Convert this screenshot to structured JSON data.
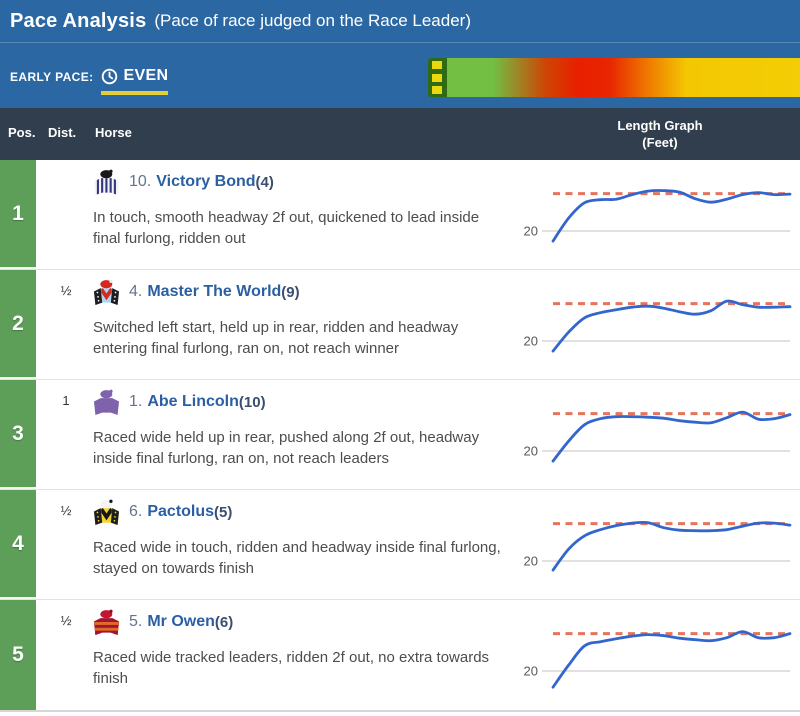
{
  "header": {
    "title": "Pace Analysis",
    "subtitle": "(Pace of race judged on the Race Leader)"
  },
  "early_pace": {
    "label": "EARLY PACE:",
    "value": "EVEN",
    "underline_color": "#e3ce39",
    "gradient_stops": [
      "#72bf44 0%",
      "#72bf44 13%",
      "#cf4504 28%",
      "#e81f00 37%",
      "#e82600 46%",
      "#ef7a00 57%",
      "#f3c802 68%",
      "#f3cd05 100%"
    ],
    "marker": {
      "frame": "#2f6b12",
      "square": "#ecd80e"
    }
  },
  "table": {
    "columns": {
      "pos": "Pos.",
      "dist": "Dist.",
      "horse": "Horse",
      "graph_line1": "Length Graph",
      "graph_line2": "(Feet)"
    }
  },
  "colors": {
    "header_blue": "#2b68a3",
    "table_header_dark": "#303e4d",
    "position_green": "#5d9e58",
    "horse_link_blue": "#2b5fa3"
  },
  "rows": [
    {
      "pos": "1",
      "dist": "",
      "num": "10.",
      "name": "Victory Bond",
      "draw": "(4)",
      "comment": "In touch, smooth headway 2f out, quickened to lead inside final furlong, ridden out",
      "silk": {
        "base": "#f4f4f8",
        "pattern": "stripes",
        "pattern_color": "#34387c",
        "sleeves": null,
        "sleeve_dot": null,
        "cap": "#17171c",
        "pom": "#17171c"
      }
    },
    {
      "pos": "2",
      "dist": "½",
      "num": "4.",
      "name": "Master The World",
      "draw": "(9)",
      "comment": "Switched left start, held up in rear, ridden and headway entering final furlong, ran on, not reach winner",
      "silk": {
        "base": "#aed6ee",
        "pattern": "chevron",
        "pattern_color": "#d32b20",
        "sleeves": "#1d1d22",
        "sleeve_dot": "#ffffff",
        "cap": "#d3291d",
        "pom": "#efe6e6"
      }
    },
    {
      "pos": "3",
      "dist": "1",
      "num": "1.",
      "name": "Abe Lincoln",
      "draw": "(10)",
      "comment": "Raced wide held up in rear, pushed along 2f out, headway inside final furlong, ran on, not reach leaders",
      "silk": {
        "base": "#7e62ab",
        "pattern": "plain",
        "pattern_color": null,
        "sleeves": null,
        "sleeve_dot": null,
        "cap": "#7e62ab",
        "pom": "#7e62ab"
      }
    },
    {
      "pos": "4",
      "dist": "½",
      "num": "6.",
      "name": "Pactolus",
      "draw": "(5)",
      "comment": "Raced wide in touch, ridden and headway inside final furlong, stayed on towards finish",
      "silk": {
        "base": "#f3d32b",
        "pattern": "chevron",
        "pattern_color": "#17171a",
        "sleeves": "#1d1d22",
        "sleeve_dot": "#f3d32b",
        "cap": "#f4f4f4",
        "pom": "#17171a"
      }
    },
    {
      "pos": "5",
      "dist": "½",
      "num": "5.",
      "name": "Mr Owen",
      "draw": "(6)",
      "comment": "Raced wide tracked leaders, ridden 2f out, no extra towards finish",
      "silk": {
        "base": "#a31430",
        "pattern": "hoops",
        "pattern_color": "#e06b28",
        "sleeves": "#a31430",
        "sleeve_dot": null,
        "cap": "#c2172f",
        "pom": "#8e1028"
      }
    }
  ],
  "chart_data": {
    "type": "line",
    "title": "Length Graph (Feet)",
    "ylabel_tick": "20",
    "unit": "Feet",
    "x_meaning": "race progress (start to finish)",
    "reference_feet": 23.7,
    "line_color": "#3366cc",
    "reference_color": "#e8735c",
    "grid_color": "#cfcfcf",
    "legend": "none",
    "series": [
      {
        "name": "Victory Bond",
        "feet": [
          19.0,
          21.3,
          22.8,
          23.1,
          23.15,
          23.6,
          23.95,
          24.0,
          23.85,
          23.2,
          22.85,
          23.15,
          23.6,
          23.8,
          23.6,
          23.65
        ]
      },
      {
        "name": "Master The World",
        "feet": [
          19.0,
          20.9,
          22.3,
          22.8,
          23.1,
          23.35,
          23.45,
          23.25,
          22.9,
          22.65,
          23.0,
          23.95,
          23.6,
          23.35,
          23.35,
          23.4
        ]
      },
      {
        "name": "Abe Lincoln",
        "feet": [
          19.0,
          21.0,
          22.6,
          23.2,
          23.4,
          23.4,
          23.35,
          23.25,
          23.0,
          22.85,
          22.8,
          23.3,
          23.85,
          23.15,
          23.2,
          23.6
        ]
      },
      {
        "name": "Pactolus",
        "feet": [
          19.1,
          21.2,
          22.5,
          23.1,
          23.5,
          23.75,
          23.8,
          23.3,
          23.05,
          23.0,
          23.0,
          23.1,
          23.45,
          23.75,
          23.75,
          23.55
        ]
      },
      {
        "name": "Mr Owen",
        "feet": [
          18.4,
          20.6,
          22.5,
          22.9,
          23.2,
          23.45,
          23.6,
          23.5,
          23.25,
          23.1,
          23.0,
          23.3,
          23.9,
          23.3,
          23.3,
          23.7
        ]
      }
    ]
  }
}
